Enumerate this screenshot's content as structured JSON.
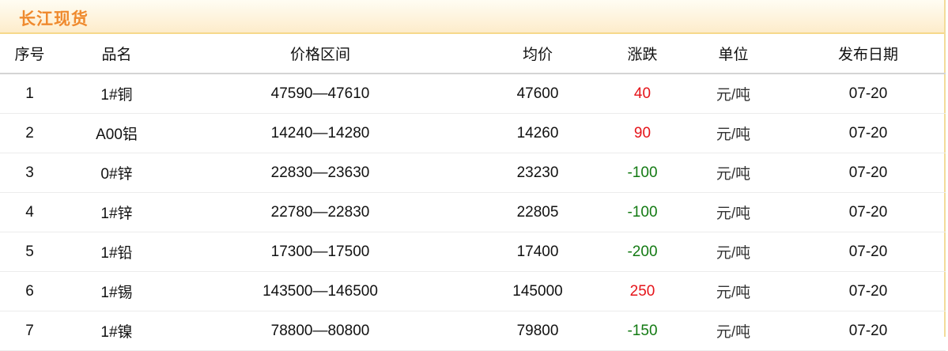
{
  "header": {
    "title": "长江现货"
  },
  "colors": {
    "title": "#ef8a2e",
    "up": "#e5141a",
    "down": "#137a13"
  },
  "columns": [
    "序号",
    "品名",
    "价格区间",
    "均价",
    "涨跌",
    "单位",
    "发布日期"
  ],
  "rows": [
    {
      "no": "1",
      "name": "1#铜",
      "range": "47590—47610",
      "avg": "47600",
      "change": "40",
      "dir": "up",
      "unit": "元/吨",
      "date": "07-20"
    },
    {
      "no": "2",
      "name": "A00铝",
      "range": "14240—14280",
      "avg": "14260",
      "change": "90",
      "dir": "up",
      "unit": "元/吨",
      "date": "07-20"
    },
    {
      "no": "3",
      "name": "0#锌",
      "range": "22830—23630",
      "avg": "23230",
      "change": "-100",
      "dir": "down",
      "unit": "元/吨",
      "date": "07-20"
    },
    {
      "no": "4",
      "name": "1#锌",
      "range": "22780—22830",
      "avg": "22805",
      "change": "-100",
      "dir": "down",
      "unit": "元/吨",
      "date": "07-20"
    },
    {
      "no": "5",
      "name": "1#铅",
      "range": "17300—17500",
      "avg": "17400",
      "change": "-200",
      "dir": "down",
      "unit": "元/吨",
      "date": "07-20"
    },
    {
      "no": "6",
      "name": "1#锡",
      "range": "143500—146500",
      "avg": "145000",
      "change": "250",
      "dir": "up",
      "unit": "元/吨",
      "date": "07-20"
    },
    {
      "no": "7",
      "name": "1#镍",
      "range": "78800—80800",
      "avg": "79800",
      "change": "-150",
      "dir": "down",
      "unit": "元/吨",
      "date": "07-20"
    }
  ]
}
